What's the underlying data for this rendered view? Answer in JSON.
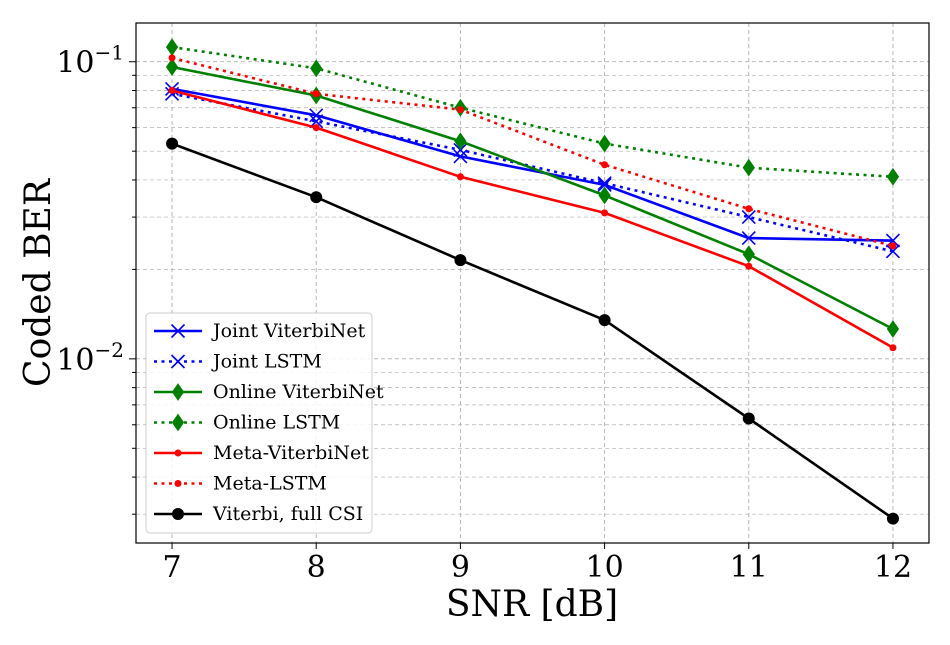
{
  "chart_data": {
    "type": "line",
    "title": "",
    "xlabel": "SNR [dB]",
    "ylabel": "Coded BER",
    "yscale": "log",
    "grid": true,
    "legend_location": "lower-left",
    "x": [
      7,
      8,
      9,
      10,
      11,
      12
    ],
    "xlim": [
      6.75,
      12.25
    ],
    "ylim": [
      0.0024,
      0.135
    ],
    "x_ticks": [
      "7",
      "8",
      "9",
      "10",
      "11",
      "12"
    ],
    "y_tick_labels": [
      {
        "value": 0.1,
        "base": "10",
        "exp": "−1"
      },
      {
        "value": 0.01,
        "base": "10",
        "exp": "−2"
      }
    ],
    "series": [
      {
        "name": "Joint ViterbiNet",
        "color": "#0000ff",
        "linestyle": "solid",
        "marker": "x",
        "values": [
          0.081,
          0.066,
          0.048,
          0.0385,
          0.0255,
          0.025
        ]
      },
      {
        "name": "Joint LSTM",
        "color": "#0000ff",
        "linestyle": "dotted",
        "marker": "x",
        "values": [
          0.078,
          0.063,
          0.0505,
          0.039,
          0.03,
          0.023
        ]
      },
      {
        "name": "Online ViterbiNet",
        "color": "#008000",
        "linestyle": "solid",
        "marker": "diamond",
        "values": [
          0.096,
          0.077,
          0.054,
          0.0355,
          0.0225,
          0.0126
        ]
      },
      {
        "name": "Online LSTM",
        "color": "#008000",
        "linestyle": "dotted",
        "marker": "diamond",
        "values": [
          0.112,
          0.095,
          0.07,
          0.053,
          0.044,
          0.041
        ]
      },
      {
        "name": "Meta-ViterbiNet",
        "color": "#ff0000",
        "linestyle": "solid",
        "marker": "dot",
        "values": [
          0.08,
          0.06,
          0.041,
          0.031,
          0.0205,
          0.0109
        ]
      },
      {
        "name": "Meta-LSTM",
        "color": "#ff0000",
        "linestyle": "dotted",
        "marker": "dot",
        "values": [
          0.103,
          0.078,
          0.069,
          0.045,
          0.032,
          0.024
        ]
      },
      {
        "name": "Viterbi, full CSI",
        "color": "#000000",
        "linestyle": "solid",
        "marker": "circle",
        "values": [
          0.053,
          0.035,
          0.0215,
          0.0135,
          0.0063,
          0.0029
        ]
      }
    ]
  }
}
